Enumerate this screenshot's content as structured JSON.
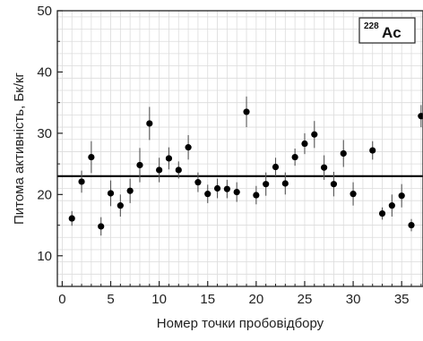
{
  "chart_data": {
    "type": "scatter",
    "title": "",
    "xlabel": "Номер точки пробовідбору",
    "ylabel": "Питома активність, Бк/кг",
    "xlim": [
      -0.5,
      37.2
    ],
    "ylim": [
      5,
      50
    ],
    "xticks": [
      0,
      5,
      10,
      15,
      20,
      25,
      30,
      35
    ],
    "yticks": [
      10,
      20,
      30,
      40,
      50
    ],
    "grid": true,
    "legend": {
      "text": "Ac",
      "superscript": "228",
      "position": "top-right"
    },
    "reference_line": 23,
    "series": [
      {
        "x": [
          1,
          2,
          3,
          4,
          5,
          6,
          7,
          8,
          9,
          10,
          11,
          12,
          13,
          14,
          15,
          16,
          17,
          18,
          19,
          20,
          21,
          22,
          23,
          24,
          25,
          26,
          27,
          28,
          29,
          30,
          32,
          33,
          34,
          35,
          36,
          37
        ],
        "y": [
          16.1,
          22.1,
          26.1,
          14.8,
          20.2,
          18.2,
          20.6,
          24.8,
          31.6,
          24.0,
          25.9,
          24.0,
          27.7,
          22.0,
          20.1,
          21.0,
          20.9,
          20.4,
          33.5,
          19.9,
          21.7,
          24.5,
          21.8,
          26.1,
          28.3,
          29.8,
          24.4,
          21.7,
          26.7,
          20.1,
          27.2,
          16.9,
          18.2,
          19.8,
          15.0,
          32.8
        ],
        "err": [
          1.2,
          1.8,
          2.6,
          1.5,
          2.1,
          1.8,
          2.0,
          2.8,
          2.7,
          2.0,
          1.8,
          1.4,
          2.0,
          1.6,
          1.5,
          1.6,
          1.5,
          1.6,
          2.5,
          1.5,
          1.9,
          1.5,
          1.8,
          1.4,
          1.7,
          2.2,
          2.0,
          2.0,
          2.2,
          1.9,
          1.5,
          1.0,
          1.8,
          1.9,
          1.0,
          1.8
        ]
      }
    ]
  }
}
